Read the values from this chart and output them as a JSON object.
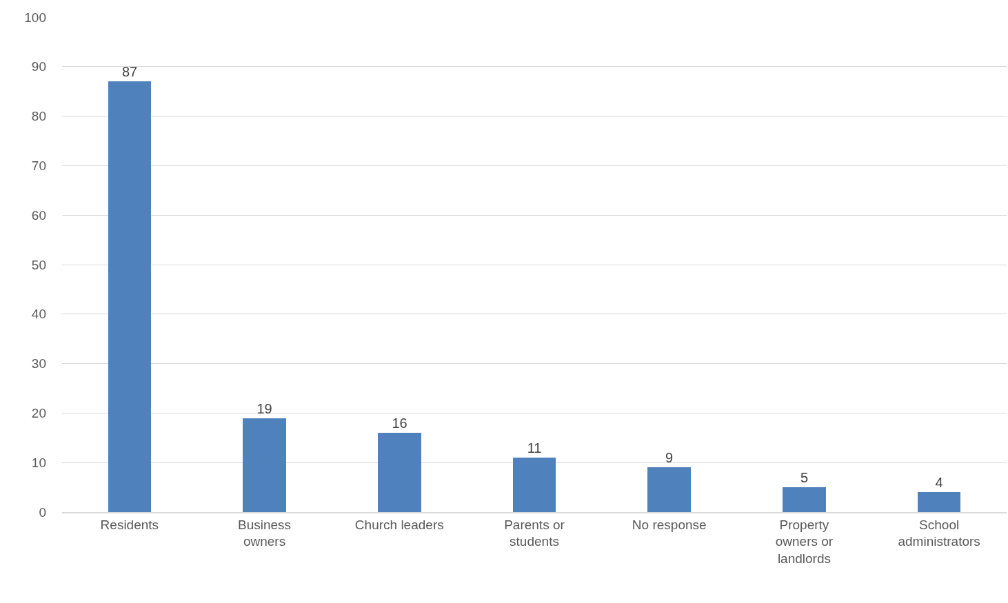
{
  "chart_data": {
    "type": "bar",
    "categories": [
      "Residents",
      "Business owners",
      "Church leaders",
      "Parents or students",
      "No response",
      "Property owners or landlords",
      "School administrators"
    ],
    "values": [
      87,
      19,
      16,
      11,
      9,
      5,
      4
    ],
    "color": "#4f81bd",
    "ylim": [
      0,
      100
    ],
    "yticks": [
      0,
      10,
      20,
      30,
      40,
      50,
      60,
      70,
      80,
      90,
      100
    ],
    "grid": "y",
    "data_labels": true,
    "legend": false
  }
}
